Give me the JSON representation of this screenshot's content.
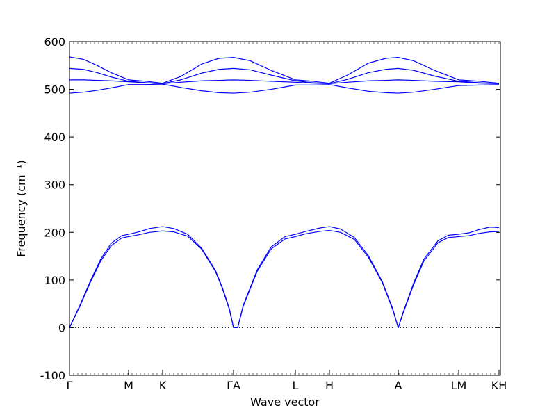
{
  "chart_data": {
    "type": "line",
    "title": "",
    "xlabel": "Wave vector",
    "ylabel": "Frequency (cm⁻¹)",
    "ylim": [
      -100,
      600
    ],
    "yticks": [
      -100,
      0,
      100,
      200,
      300,
      400,
      500,
      600
    ],
    "xlim": [
      0,
      6.2
    ],
    "kpoints": [
      {
        "label": "Γ",
        "x": 0.0
      },
      {
        "label": "M",
        "x": 0.85
      },
      {
        "label": "K",
        "x": 1.34
      },
      {
        "label": "ΓA",
        "x": 2.36
      },
      {
        "label": "L",
        "x": 3.25
      },
      {
        "label": "H",
        "x": 3.74
      },
      {
        "label": "A",
        "x": 4.73
      },
      {
        "label": "LM",
        "x": 5.6
      },
      {
        "label": "KH",
        "x": 6.18
      }
    ],
    "zero_line": {
      "y": 0,
      "style": "dotted"
    },
    "line_color": "#0000ff",
    "series": [
      {
        "x": [
          0,
          0.15,
          0.3,
          0.45,
          0.6,
          0.75,
          0.85,
          1.0,
          1.15,
          1.34,
          1.5,
          1.7,
          1.9,
          2.1,
          2.2,
          2.3,
          2.36,
          2.42,
          2.5,
          2.7,
          2.9,
          3.1,
          3.25,
          3.4,
          3.6,
          3.74,
          3.9,
          4.1,
          4.3,
          4.5,
          4.65,
          4.73,
          4.8,
          4.95,
          5.1,
          5.3,
          5.45,
          5.6,
          5.75,
          5.9,
          6.05,
          6.18
        ],
        "values": [
          0,
          45,
          95,
          140,
          172,
          188,
          191,
          195,
          200,
          203,
          201,
          192,
          165,
          118,
          82,
          38,
          0,
          0,
          45,
          118,
          165,
          186,
          191,
          197,
          202,
          204,
          200,
          185,
          148,
          95,
          38,
          0,
          30,
          90,
          140,
          178,
          189,
          191,
          193,
          198,
          201,
          202
        ]
      },
      {
        "x": [
          0,
          0.15,
          0.3,
          0.45,
          0.6,
          0.75,
          0.85,
          1.0,
          1.15,
          1.34,
          1.5,
          1.7,
          1.9,
          2.1,
          2.2,
          2.3,
          2.36,
          2.42,
          2.5,
          2.7,
          2.9,
          3.1,
          3.25,
          3.4,
          3.6,
          3.74,
          3.9,
          4.1,
          4.3,
          4.5,
          4.65,
          4.73,
          4.8,
          4.95,
          5.1,
          5.3,
          5.45,
          5.6,
          5.75,
          5.9,
          6.05,
          6.18
        ],
        "values": [
          0,
          47,
          98,
          144,
          177,
          193,
          196,
          201,
          208,
          212,
          208,
          196,
          167,
          120,
          84,
          40,
          0,
          0,
          47,
          121,
          169,
          191,
          196,
          202,
          209,
          212,
          207,
          189,
          151,
          97,
          40,
          0,
          32,
          93,
          144,
          182,
          194,
          196,
          199,
          206,
          211,
          210
        ]
      },
      {
        "x": [
          0,
          0.2,
          0.4,
          0.6,
          0.85,
          1.1,
          1.34,
          1.6,
          1.9,
          2.15,
          2.36,
          2.6,
          2.9,
          3.25,
          3.5,
          3.74,
          4.0,
          4.3,
          4.55,
          4.73,
          4.95,
          5.25,
          5.6,
          5.9,
          6.18
        ],
        "values": [
          492,
          494,
          498,
          503,
          510,
          510,
          511,
          504,
          497,
          493,
          492,
          494,
          500,
          509,
          509,
          510,
          503,
          496,
          493,
          492,
          494,
          500,
          508,
          509,
          510
        ]
      },
      {
        "x": [
          0,
          0.2,
          0.4,
          0.6,
          0.85,
          1.1,
          1.34,
          1.6,
          1.9,
          2.15,
          2.36,
          2.6,
          2.9,
          3.25,
          3.5,
          3.74,
          4.0,
          4.3,
          4.55,
          4.73,
          4.95,
          5.25,
          5.6,
          5.9,
          6.18
        ],
        "values": [
          520,
          520,
          519,
          518,
          516,
          514,
          512,
          515,
          518,
          519,
          520,
          519,
          517,
          515,
          513,
          512,
          515,
          518,
          519,
          520,
          519,
          517,
          516,
          513,
          512
        ]
      },
      {
        "x": [
          0,
          0.2,
          0.4,
          0.6,
          0.85,
          1.1,
          1.34,
          1.6,
          1.9,
          2.15,
          2.36,
          2.6,
          2.9,
          3.25,
          3.5,
          3.74,
          4.0,
          4.3,
          4.55,
          4.73,
          4.95,
          5.25,
          5.6,
          5.9,
          6.18
        ],
        "values": [
          544,
          542,
          535,
          526,
          517,
          514,
          512,
          520,
          534,
          542,
          544,
          541,
          530,
          518,
          514,
          512,
          521,
          535,
          542,
          544,
          540,
          528,
          517,
          514,
          512
        ]
      },
      {
        "x": [
          0,
          0.2,
          0.4,
          0.6,
          0.85,
          1.1,
          1.34,
          1.6,
          1.9,
          2.15,
          2.36,
          2.6,
          2.9,
          3.25,
          3.5,
          3.74,
          4.0,
          4.3,
          4.55,
          4.73,
          4.95,
          5.25,
          5.6,
          5.9,
          6.18
        ],
        "values": [
          568,
          563,
          550,
          535,
          520,
          517,
          513,
          527,
          553,
          565,
          567,
          560,
          540,
          520,
          517,
          513,
          530,
          555,
          565,
          567,
          560,
          540,
          520,
          517,
          513
        ]
      }
    ]
  }
}
